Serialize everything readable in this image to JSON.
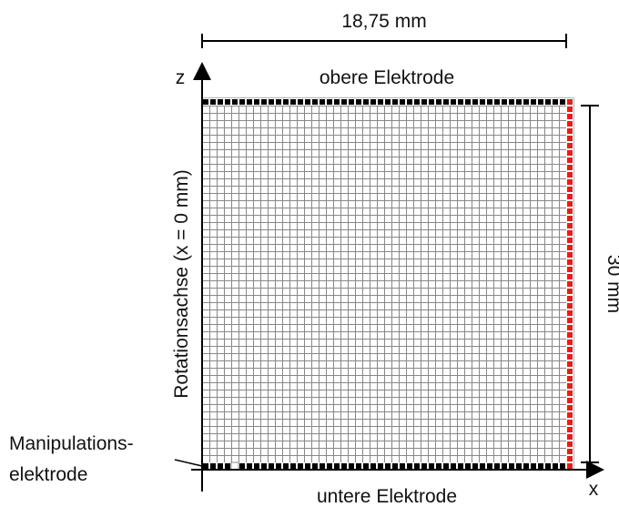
{
  "dimensions": {
    "width": "18,75 mm",
    "height": "30  mm"
  },
  "labels": {
    "top_electrode": "obere  Elektrode",
    "bottom_electrode": "untere Elektrode",
    "axis_z": "z",
    "axis_x": "x",
    "rotation_axis": "Rotationsachse (x = 0 mm)",
    "manipulation_line1": "Manipulations-",
    "manipulation_line2": "elektrode"
  }
}
